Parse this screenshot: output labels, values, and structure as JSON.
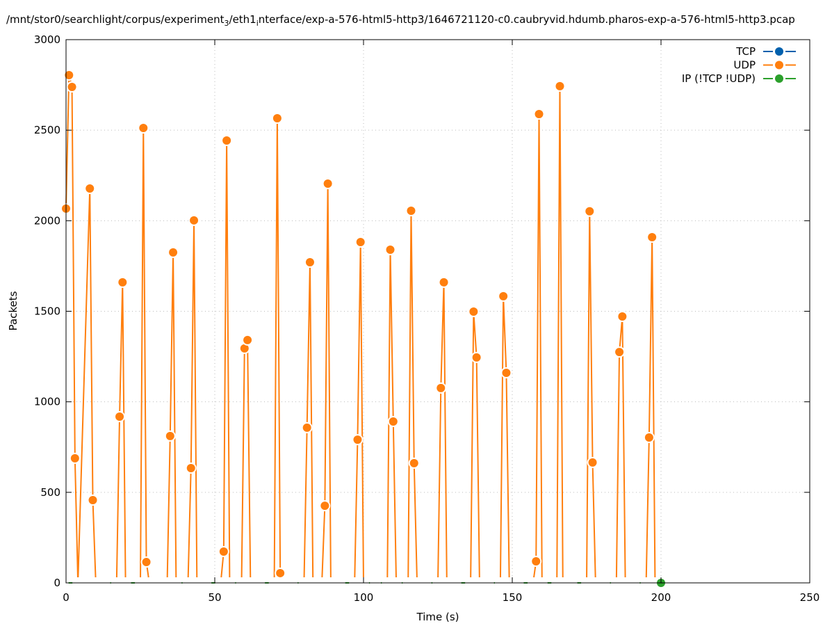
{
  "chart_data": {
    "type": "line",
    "title_parts": [
      "/mnt/stor0/searchlight/corpus/experiment",
      "3",
      "/eth1",
      "i",
      "nterface/exp-a-576-html5-http3/1646721120-c0.caubryvid.hdumb.pharos-exp-a-576-html5-http3.pcap"
    ],
    "xlabel": "Time (s)",
    "ylabel": "Packets",
    "xlim": [
      0,
      250
    ],
    "ylim": [
      0,
      3000
    ],
    "xticks": [
      0,
      50,
      100,
      150,
      200,
      250
    ],
    "yticks": [
      0,
      500,
      1000,
      1500,
      2000,
      2500,
      3000
    ],
    "grid": true,
    "legend_position": "top-right",
    "series": [
      {
        "name": "TCP",
        "color": "#0060ad",
        "x": [],
        "y": []
      },
      {
        "name": "UDP",
        "color": "#ff7f0e",
        "x": [
          0,
          1,
          2,
          3,
          4,
          8,
          9,
          10,
          17,
          18,
          19,
          20,
          25,
          26,
          27,
          28,
          34,
          35,
          36,
          37,
          41,
          42,
          43,
          44,
          52,
          53,
          54,
          55,
          59,
          60,
          61,
          62,
          70,
          71,
          72,
          73,
          80,
          81,
          82,
          83,
          86,
          87,
          88,
          89,
          97,
          98,
          99,
          100,
          108,
          109,
          110,
          111,
          115,
          116,
          117,
          118,
          125,
          126,
          127,
          128,
          136,
          137,
          138,
          139,
          146,
          147,
          148,
          149,
          157,
          158,
          159,
          160,
          165,
          166,
          167,
          175,
          176,
          177,
          178,
          185,
          186,
          187,
          188,
          195,
          196,
          197,
          198
        ],
        "y": [
          2067,
          2804,
          2739,
          688,
          0,
          2178,
          457,
          0,
          0,
          918,
          1660,
          0,
          0,
          2512,
          115,
          0,
          0,
          811,
          1825,
          0,
          0,
          634,
          2002,
          0,
          0,
          173,
          2443,
          0,
          0,
          1295,
          1341,
          0,
          0,
          2566,
          54,
          0,
          0,
          857,
          1771,
          0,
          0,
          426,
          2205,
          0,
          0,
          791,
          1882,
          0,
          0,
          1840,
          891,
          0,
          0,
          2055,
          661,
          0,
          0,
          1076,
          1660,
          0,
          0,
          1498,
          1245,
          0,
          0,
          1583,
          1160,
          0,
          0,
          119,
          2589,
          0,
          0,
          2743,
          0,
          0,
          2052,
          665,
          0,
          0,
          1275,
          1471,
          0,
          0,
          803,
          1909,
          0
        ]
      },
      {
        "name": "IP (!TCP  !UDP)",
        "color": "#2ca02c",
        "x": [
          -1,
          4,
          7,
          10,
          13,
          17,
          20,
          25,
          28,
          31,
          34,
          37,
          41,
          44,
          47,
          52,
          55,
          59,
          62,
          65,
          70,
          73,
          76,
          80,
          83,
          86,
          89,
          92,
          97,
          100,
          104,
          108,
          111,
          115,
          118,
          121,
          125,
          128,
          131,
          136,
          139,
          142,
          146,
          149,
          152,
          157,
          160,
          165,
          167,
          170,
          175,
          178,
          181,
          185,
          188,
          191,
          195,
          198,
          200
        ],
        "y": [
          0,
          0,
          0,
          0,
          0,
          0,
          0,
          0,
          0,
          0,
          0,
          0,
          0,
          0,
          0,
          0,
          0,
          0,
          0,
          0,
          0,
          0,
          0,
          0,
          0,
          0,
          0,
          0,
          0,
          0,
          0,
          0,
          0,
          0,
          0,
          0,
          0,
          0,
          0,
          0,
          0,
          0,
          0,
          0,
          0,
          0,
          0,
          0,
          0,
          0,
          0,
          0,
          0,
          0,
          0,
          0,
          0,
          0,
          0
        ]
      }
    ]
  }
}
